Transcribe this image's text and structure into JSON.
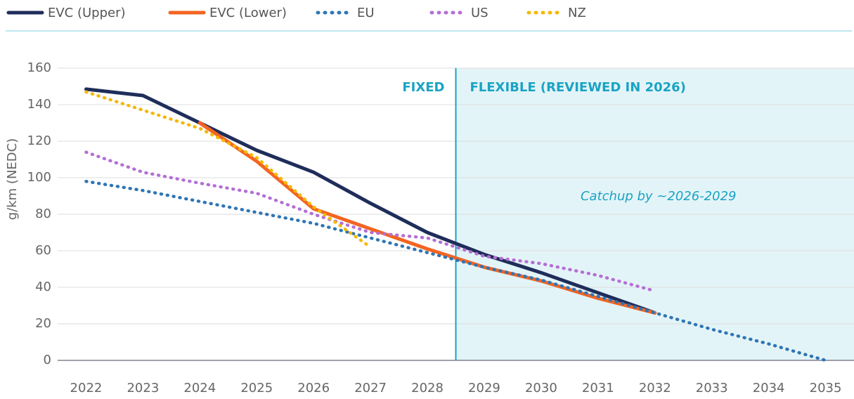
{
  "chart_data": {
    "type": "line",
    "y_label": "g/km (NEDC)",
    "x": [
      2022,
      2023,
      2024,
      2025,
      2026,
      2027,
      2028,
      2029,
      2030,
      2031,
      2032,
      2033,
      2034,
      2035
    ],
    "xlim": [
      2021.5,
      2035.5
    ],
    "xticks": [
      2022,
      2023,
      2024,
      2025,
      2026,
      2027,
      2028,
      2029,
      2030,
      2031,
      2032,
      2033,
      2034,
      2035
    ],
    "ylim": [
      0,
      160
    ],
    "yticks": [
      0,
      20,
      40,
      60,
      80,
      100,
      120,
      140,
      160
    ],
    "grid": true,
    "legend": "top",
    "divider": 2028.5,
    "divider_color": "#1aa3c4",
    "shade_color": "#e3f4f8",
    "annotations": [
      "FIXED",
      "FLEXIBLE (REVIEWED IN 2026)",
      "Catchup by ~2026-2029"
    ],
    "series": [
      {
        "name": "EVC (Upper)",
        "color": "#1f2d5a",
        "dash": "solid",
        "values": [
          148.5,
          145,
          130,
          115,
          103,
          86,
          70,
          58,
          48,
          37,
          26,
          null,
          null,
          null
        ]
      },
      {
        "name": "EVC (Lower)",
        "color": "#f26522",
        "dash": "solid",
        "values": [
          null,
          null,
          130,
          109,
          83,
          72,
          61,
          51,
          43.5,
          34,
          26,
          null,
          null,
          null
        ]
      },
      {
        "name": "EU",
        "color": "#2f75b5",
        "dash": "dotted",
        "values": [
          98,
          93,
          87,
          81,
          75,
          67,
          59,
          51,
          44,
          35,
          26,
          17,
          9,
          0
        ]
      },
      {
        "name": "US",
        "color": "#b46fd4",
        "dash": "dotted",
        "values": [
          114,
          103,
          97,
          91.5,
          80,
          70,
          67,
          57,
          53,
          46.5,
          38,
          null,
          null,
          null
        ]
      },
      {
        "name": "NZ",
        "color": "#f5b800",
        "dash": "dotted",
        "values": [
          147,
          137,
          127,
          111,
          84,
          62,
          null,
          null,
          null,
          null,
          null,
          null,
          null,
          null
        ]
      }
    ]
  }
}
